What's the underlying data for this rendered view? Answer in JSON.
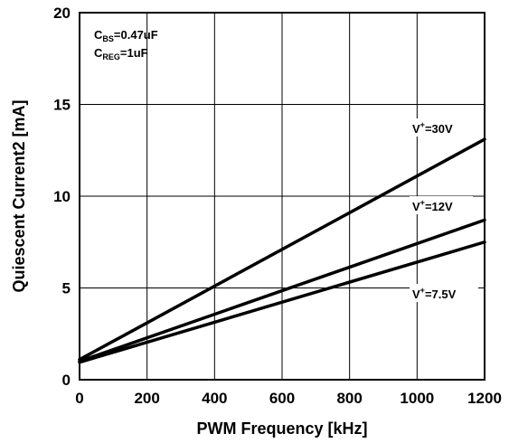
{
  "chart_data": {
    "type": "line",
    "title": "",
    "xlabel": "PWM Frequency [kHz]",
    "ylabel": "Quiescent Current2 [mA]",
    "xlim": [
      0,
      1200
    ],
    "ylim": [
      0,
      20
    ],
    "xticks": [
      0,
      200,
      400,
      600,
      800,
      1000,
      1200
    ],
    "yticks": [
      0,
      5,
      10,
      15,
      20
    ],
    "grid": true,
    "conditions": [
      {
        "main": "C",
        "sub": "BS",
        "value": "=0.47uF"
      },
      {
        "main": "C",
        "sub": "REG",
        "value": "=1uF"
      }
    ],
    "series": [
      {
        "name": "V+=30V",
        "label_main": "V",
        "label_sup": "+",
        "label_value": "=30V",
        "x": [
          0,
          1200
        ],
        "y": [
          1.1,
          13.1
        ]
      },
      {
        "name": "V+=12V",
        "label_main": "V",
        "label_sup": "+",
        "label_value": "=12V",
        "x": [
          0,
          1200
        ],
        "y": [
          1.0,
          8.7
        ]
      },
      {
        "name": "V+=7.5V",
        "label_main": "V",
        "label_sup": "+",
        "label_value": "=7.5V",
        "x": [
          0,
          1200
        ],
        "y": [
          0.95,
          7.5
        ]
      }
    ]
  }
}
